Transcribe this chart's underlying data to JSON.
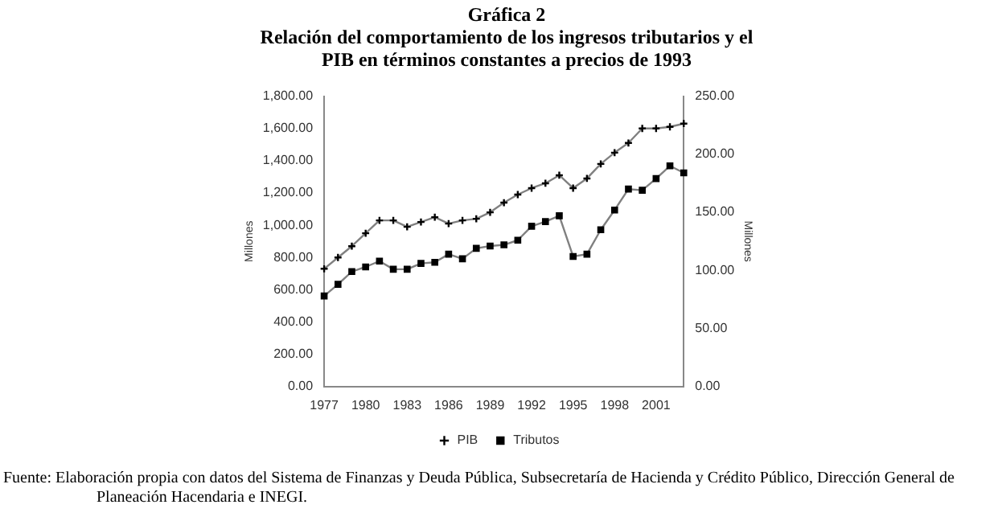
{
  "chart_data": {
    "type": "line",
    "title": "Gráfica 2",
    "subtitle": "Relación del comportamiento de los ingresos tributarios y el PIB en términos constantes a precios de 1993",
    "ylabel": "Millones",
    "y2label": "Millones",
    "categories": [
      "1977",
      null,
      null,
      "1980",
      null,
      null,
      "1983",
      null,
      null,
      "1986",
      null,
      null,
      "1989",
      null,
      null,
      "1992",
      null,
      null,
      "1995",
      null,
      null,
      "1998",
      null,
      null,
      "2001",
      null,
      null
    ],
    "series": [
      {
        "name": "PIB",
        "color": "#808080",
        "marker": "cross",
        "values": [
          730,
          800,
          870,
          950,
          1030,
          1030,
          990,
          1020,
          1050,
          1010,
          1030,
          1040,
          1080,
          1140,
          1190,
          1230,
          1260,
          1310,
          1230,
          1290,
          1380,
          1450,
          1510,
          1600,
          1600,
          1610,
          1630
        ]
      },
      {
        "name": "Tributos",
        "color": "#808080",
        "marker": "square",
        "axis": "y2",
        "values": [
          78,
          88,
          99,
          103,
          108,
          101,
          101,
          106,
          107,
          114,
          110,
          119,
          121,
          122,
          126,
          138,
          142,
          147,
          112,
          114,
          135,
          152,
          170,
          169,
          179,
          190,
          184
        ]
      }
    ],
    "ylim": [
      0,
      1800
    ],
    "yticks": [
      {
        "value": 0,
        "label": "0.00"
      },
      {
        "value": 200,
        "label": "200.00"
      },
      {
        "value": 400,
        "label": "400.00"
      },
      {
        "value": 600,
        "label": "600.00"
      },
      {
        "value": 800,
        "label": "800.00"
      },
      {
        "value": 1000,
        "label": "1,000.00"
      },
      {
        "value": 1200,
        "label": "1,200.00"
      },
      {
        "value": 1400,
        "label": "1,400.00"
      },
      {
        "value": 1600,
        "label": "1,600.00"
      },
      {
        "value": 1800,
        "label": "1,800.00"
      }
    ],
    "y2lim": [
      0,
      250
    ],
    "y2ticks": [
      {
        "value": 0,
        "label": "0.00"
      },
      {
        "value": 50,
        "label": "50.00"
      },
      {
        "value": 100,
        "label": "100.00"
      },
      {
        "value": 150,
        "label": "150.00"
      },
      {
        "value": 200,
        "label": "200.00"
      },
      {
        "value": 250,
        "label": "250.00"
      }
    ],
    "legend": "bottom",
    "grid": false,
    "line_style": "solid",
    "annotations": [
      "Fuente: Elaboración propia con datos del Sistema de Finanzas y Deuda Pública, Subsecretaría de Hacienda y Crédito Público, Dirección General de Planeación Hacendaria e INEGI."
    ]
  }
}
